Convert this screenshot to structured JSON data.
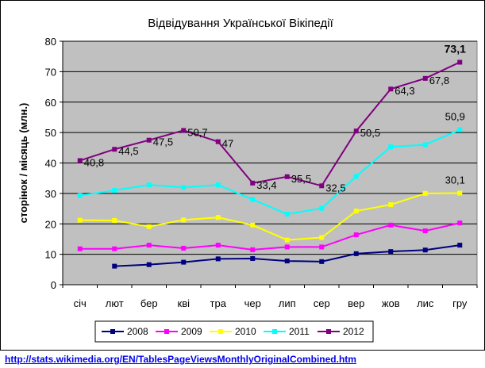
{
  "chart_data": {
    "type": "line",
    "title": "Відвідування Української Вікіпедії",
    "ylabel": "сторінок / місяць (млн.)",
    "xlabel": "",
    "ylim": [
      0,
      80
    ],
    "yticks": [
      0,
      10,
      20,
      30,
      40,
      50,
      60,
      70,
      80
    ],
    "grid": true,
    "legend": "bottom",
    "categories": [
      "січ",
      "лют",
      "бер",
      "кві",
      "тра",
      "чер",
      "лип",
      "сер",
      "вер",
      "жов",
      "лис",
      "гру"
    ],
    "series": [
      {
        "name": "2008",
        "color": "#000080",
        "values": [
          null,
          6.1,
          6.6,
          7.4,
          8.5,
          8.6,
          7.8,
          7.6,
          10.2,
          10.9,
          11.4,
          13.0
        ]
      },
      {
        "name": "2009",
        "color": "#ff00ff",
        "values": [
          11.8,
          11.8,
          13.0,
          12.0,
          13.0,
          11.5,
          12.4,
          12.4,
          16.4,
          19.6,
          17.7,
          20.3
        ]
      },
      {
        "name": "2010",
        "color": "#ffff00",
        "values": [
          21.2,
          21.1,
          19.1,
          21.3,
          22.1,
          19.6,
          14.7,
          15.5,
          24.2,
          26.3,
          30.0,
          30.1
        ]
      },
      {
        "name": "2011",
        "color": "#00ffff",
        "values": [
          29.3,
          31.0,
          32.8,
          32.0,
          32.8,
          28.0,
          23.2,
          25.1,
          35.6,
          45.3,
          46.0,
          50.9
        ]
      },
      {
        "name": "2012",
        "color": "#800080",
        "values": [
          40.8,
          44.5,
          47.5,
          50.7,
          47.0,
          33.4,
          35.5,
          32.5,
          50.5,
          64.3,
          67.8,
          73.1
        ]
      }
    ],
    "data_labels": [
      {
        "series": "2012",
        "index": 0,
        "text": "40,8"
      },
      {
        "series": "2012",
        "index": 1,
        "text": "44,5"
      },
      {
        "series": "2012",
        "index": 2,
        "text": "47,5"
      },
      {
        "series": "2012",
        "index": 3,
        "text": "50,7"
      },
      {
        "series": "2012",
        "index": 4,
        "text": "47"
      },
      {
        "series": "2012",
        "index": 5,
        "text": "33,4"
      },
      {
        "series": "2012",
        "index": 6,
        "text": "35,5"
      },
      {
        "series": "2012",
        "index": 7,
        "text": "32,5"
      },
      {
        "series": "2012",
        "index": 8,
        "text": "50,5"
      },
      {
        "series": "2012",
        "index": 9,
        "text": "64,3"
      },
      {
        "series": "2012",
        "index": 10,
        "text": "67,8"
      },
      {
        "series": "2012",
        "index": 11,
        "text": "73,1",
        "bold": true
      },
      {
        "series": "2011",
        "index": 11,
        "text": "50,9"
      },
      {
        "series": "2010",
        "index": 11,
        "text": "30,1"
      }
    ],
    "plot_background": "#c0c0c0"
  },
  "source": {
    "link_text": "http://stats.wikimedia.org/EN/TablesPageViewsMonthlyOriginalCombined.htm"
  }
}
